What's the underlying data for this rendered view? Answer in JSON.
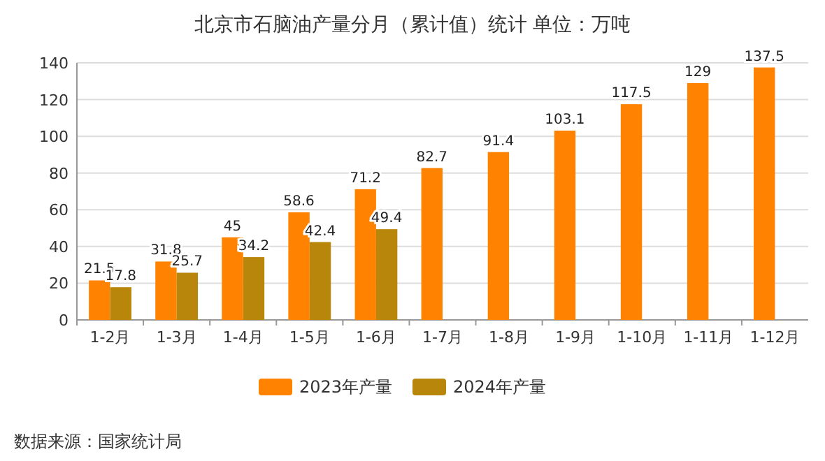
{
  "chart_data": {
    "type": "bar",
    "title": "北京市石脑油产量分月（累计值）统计  单位：万吨",
    "categories": [
      "1-2月",
      "1-3月",
      "1-4月",
      "1-5月",
      "1-6月",
      "1-7月",
      "1-8月",
      "1-9月",
      "1-10月",
      "1-11月",
      "1-12月"
    ],
    "series": [
      {
        "name": "2023年产量",
        "color": "#ff8200",
        "values": [
          21.5,
          31.8,
          45,
          58.6,
          71.2,
          82.7,
          91.4,
          103.1,
          117.5,
          129,
          137.5
        ]
      },
      {
        "name": "2024年产量",
        "color": "#b8860b",
        "values": [
          17.8,
          25.7,
          34.2,
          42.4,
          49.4,
          null,
          null,
          null,
          null,
          null,
          null
        ]
      }
    ],
    "ylim": [
      0,
      140
    ],
    "yticks": [
      0,
      20,
      40,
      60,
      80,
      100,
      120,
      140
    ],
    "grid": "y",
    "legend": "bottom",
    "data_labels": true,
    "annotations": [
      "数据来源：国家统计局"
    ]
  }
}
